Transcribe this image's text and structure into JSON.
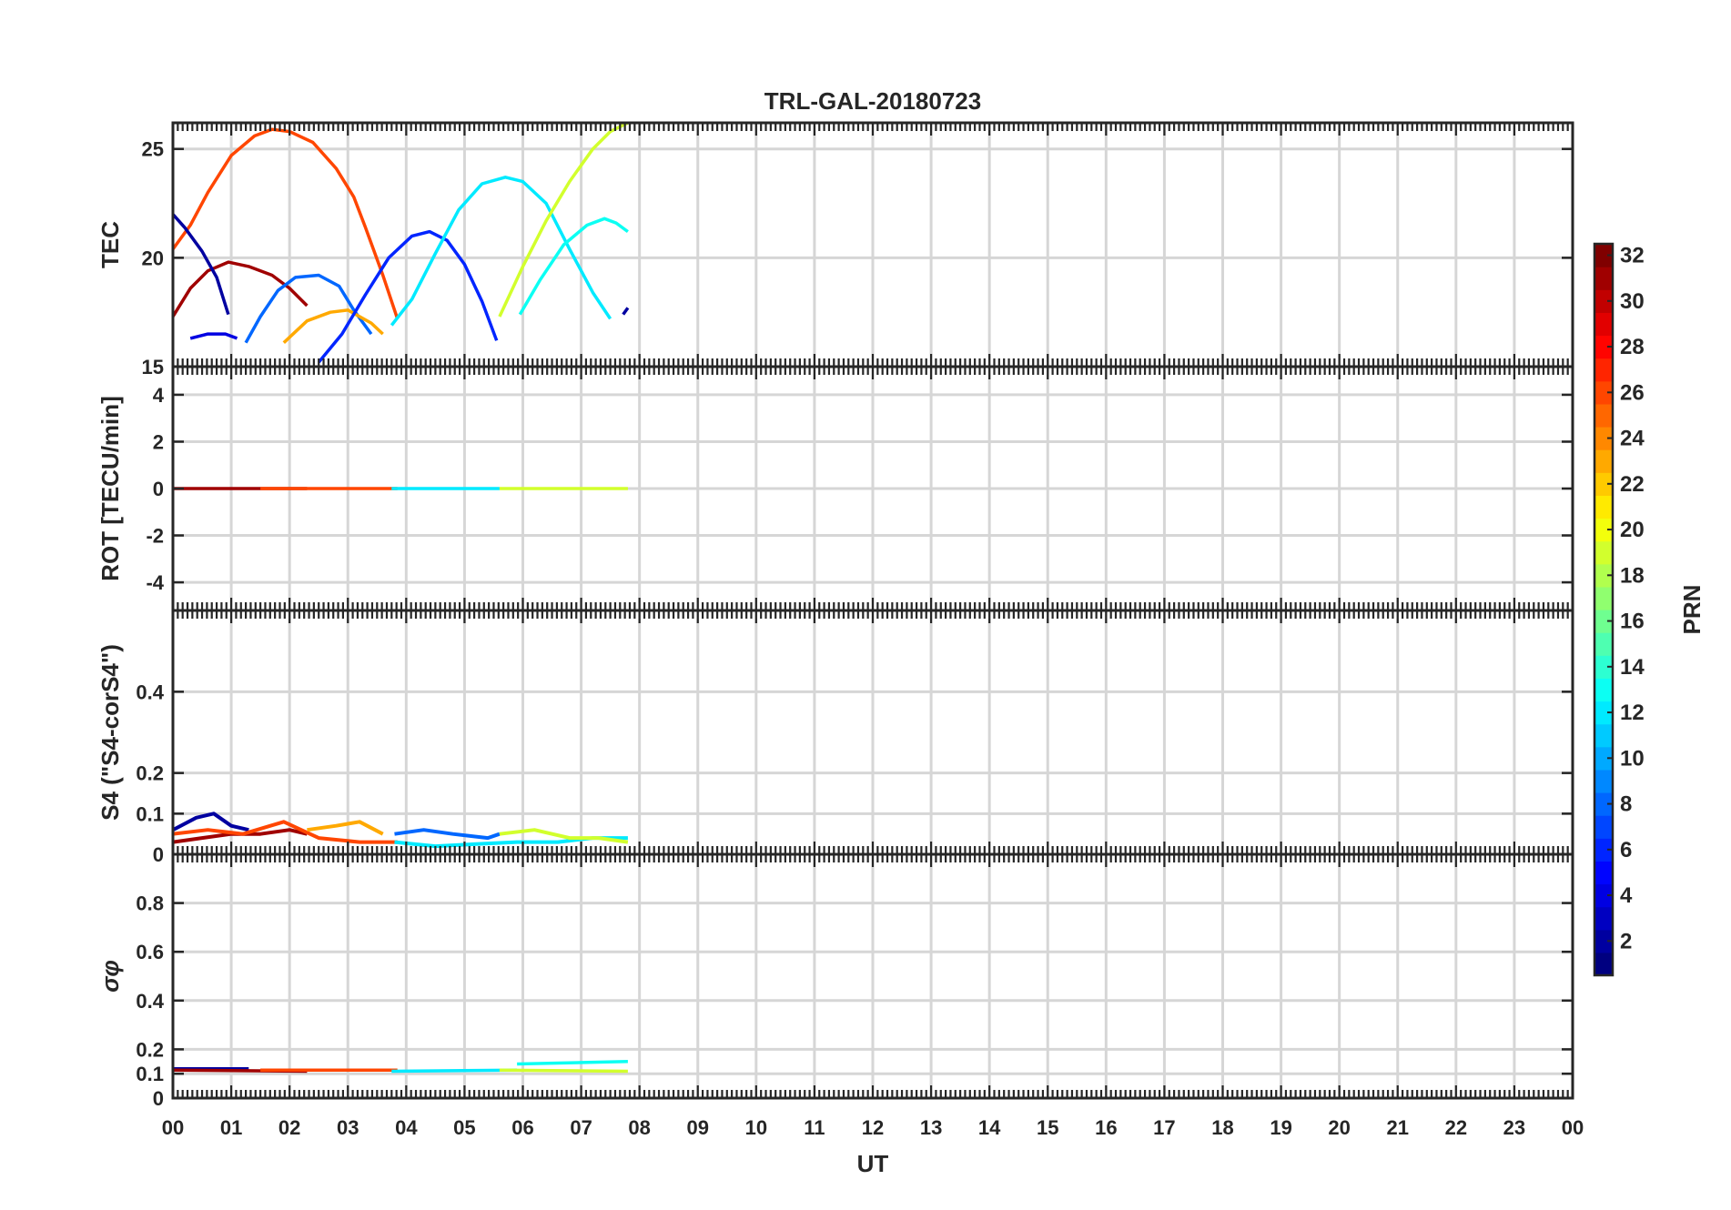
{
  "chart_data": {
    "type": "line",
    "title": "TRL-GAL-20180723",
    "xlabel": "UT",
    "x_tick_labels": [
      "00",
      "01",
      "02",
      "03",
      "04",
      "05",
      "06",
      "07",
      "08",
      "09",
      "10",
      "11",
      "12",
      "13",
      "14",
      "15",
      "16",
      "17",
      "18",
      "19",
      "20",
      "21",
      "22",
      "23",
      "00"
    ],
    "xlim": [
      0,
      24
    ],
    "grid": true,
    "colorbar": {
      "label": "PRN",
      "colormap": "jet",
      "range": [
        1,
        32
      ],
      "ticks": [
        "2",
        "4",
        "6",
        "8",
        "10",
        "12",
        "14",
        "16",
        "18",
        "20",
        "22",
        "24",
        "26",
        "28",
        "30",
        "32"
      ],
      "placement": "right"
    },
    "panels": [
      {
        "ylabel": "TEC",
        "ylim": [
          15,
          26.2
        ],
        "yticks": [
          "15",
          "20",
          "25"
        ],
        "series": [
          {
            "prn": 26,
            "points": [
              [
                0,
                20.4
              ],
              [
                0.3,
                21.5
              ],
              [
                0.6,
                23
              ],
              [
                1,
                24.7
              ],
              [
                1.4,
                25.6
              ],
              [
                1.7,
                25.9
              ],
              [
                2,
                25.8
              ],
              [
                2.4,
                25.3
              ],
              [
                2.8,
                24.1
              ],
              [
                3.1,
                22.8
              ],
              [
                3.3,
                21.4
              ],
              [
                3.6,
                19.2
              ],
              [
                3.85,
                17.2
              ]
            ]
          },
          {
            "prn": 31,
            "points": [
              [
                0,
                17.3
              ],
              [
                0.3,
                18.6
              ],
              [
                0.6,
                19.4
              ],
              [
                0.95,
                19.8
              ],
              [
                1.3,
                19.6
              ],
              [
                1.7,
                19.2
              ],
              [
                2,
                18.6
              ],
              [
                2.3,
                17.8
              ]
            ]
          },
          {
            "prn": 2,
            "points": [
              [
                0,
                22
              ],
              [
                0.2,
                21.4
              ],
              [
                0.5,
                20.3
              ],
              [
                0.75,
                19.1
              ],
              [
                0.95,
                17.4
              ]
            ]
          },
          {
            "prn": 4,
            "points": [
              [
                0.3,
                16.3
              ],
              [
                0.6,
                16.5
              ],
              [
                0.9,
                16.5
              ],
              [
                1.1,
                16.3
              ]
            ]
          },
          {
            "prn": 8,
            "points": [
              [
                1.25,
                16.1
              ],
              [
                1.5,
                17.3
              ],
              [
                1.8,
                18.5
              ],
              [
                2.1,
                19.1
              ],
              [
                2.5,
                19.2
              ],
              [
                2.85,
                18.7
              ],
              [
                3.1,
                17.6
              ],
              [
                3.4,
                16.5
              ]
            ]
          },
          {
            "prn": 23,
            "points": [
              [
                1.9,
                16.1
              ],
              [
                2.3,
                17.1
              ],
              [
                2.7,
                17.5
              ],
              [
                3,
                17.6
              ],
              [
                3.4,
                17
              ],
              [
                3.6,
                16.5
              ]
            ]
          },
          {
            "prn": 6,
            "points": [
              [
                2.5,
                15.2
              ],
              [
                2.9,
                16.5
              ],
              [
                3.3,
                18.3
              ],
              [
                3.7,
                20
              ],
              [
                4.1,
                21
              ],
              [
                4.4,
                21.2
              ],
              [
                4.7,
                20.8
              ],
              [
                5,
                19.7
              ],
              [
                5.3,
                18
              ],
              [
                5.55,
                16.2
              ]
            ]
          },
          {
            "prn": 12,
            "points": [
              [
                3.75,
                16.9
              ],
              [
                4.1,
                18.1
              ],
              [
                4.5,
                20.2
              ],
              [
                4.9,
                22.2
              ],
              [
                5.3,
                23.4
              ],
              [
                5.7,
                23.7
              ],
              [
                6,
                23.5
              ],
              [
                6.4,
                22.5
              ],
              [
                6.8,
                20.4
              ],
              [
                7.2,
                18.4
              ],
              [
                7.5,
                17.2
              ]
            ]
          },
          {
            "prn": 19,
            "points": [
              [
                5.6,
                17.3
              ],
              [
                6,
                19.6
              ],
              [
                6.4,
                21.7
              ],
              [
                6.8,
                23.5
              ],
              [
                7.2,
                25
              ],
              [
                7.5,
                25.8
              ],
              [
                7.8,
                26.2
              ]
            ]
          },
          {
            "prn": 13,
            "points": [
              [
                5.95,
                17.4
              ],
              [
                6.3,
                19
              ],
              [
                6.7,
                20.6
              ],
              [
                7.1,
                21.5
              ],
              [
                7.4,
                21.8
              ],
              [
                7.6,
                21.6
              ],
              [
                7.8,
                21.2
              ]
            ]
          },
          {
            "prn": 2,
            "points": [
              [
                7.72,
                17.4
              ],
              [
                7.8,
                17.7
              ]
            ]
          }
        ]
      },
      {
        "ylabel": "ROT [TECU/min]",
        "ylim": [
          -5.2,
          5.2
        ],
        "yticks": [
          "-4",
          "-2",
          "0",
          "2",
          "4"
        ],
        "series": [
          {
            "prn": 31,
            "points": [
              [
                0,
                0
              ],
              [
                2.3,
                0
              ]
            ]
          },
          {
            "prn": 26,
            "points": [
              [
                1.5,
                0
              ],
              [
                3.85,
                0
              ]
            ]
          },
          {
            "prn": 12,
            "points": [
              [
                3.75,
                0
              ],
              [
                5.6,
                0
              ]
            ]
          },
          {
            "prn": 19,
            "points": [
              [
                5.6,
                0
              ],
              [
                7.8,
                0
              ]
            ]
          }
        ]
      },
      {
        "ylabel": "S4 (\"S4-corS4\")",
        "ylim": [
          0,
          0.6
        ],
        "yticks": [
          "0",
          "0.1",
          "0.2",
          "0.4"
        ],
        "series": [
          {
            "prn": 2,
            "points": [
              [
                0,
                0.06
              ],
              [
                0.4,
                0.09
              ],
              [
                0.7,
                0.1
              ],
              [
                1,
                0.07
              ],
              [
                1.3,
                0.06
              ]
            ]
          },
          {
            "prn": 31,
            "points": [
              [
                0,
                0.03
              ],
              [
                0.5,
                0.04
              ],
              [
                1,
                0.05
              ],
              [
                1.5,
                0.05
              ],
              [
                2,
                0.06
              ],
              [
                2.3,
                0.05
              ]
            ]
          },
          {
            "prn": 26,
            "points": [
              [
                0,
                0.05
              ],
              [
                0.6,
                0.06
              ],
              [
                1.2,
                0.05
              ],
              [
                1.9,
                0.08
              ],
              [
                2.5,
                0.04
              ],
              [
                3.2,
                0.03
              ],
              [
                3.85,
                0.03
              ]
            ]
          },
          {
            "prn": 23,
            "points": [
              [
                2.3,
                0.06
              ],
              [
                2.8,
                0.07
              ],
              [
                3.2,
                0.08
              ],
              [
                3.6,
                0.05
              ]
            ]
          },
          {
            "prn": 8,
            "points": [
              [
                3.8,
                0.05
              ],
              [
                4.3,
                0.06
              ],
              [
                4.8,
                0.05
              ],
              [
                5.4,
                0.04
              ],
              [
                5.6,
                0.05
              ]
            ]
          },
          {
            "prn": 12,
            "points": [
              [
                3.8,
                0.03
              ],
              [
                4.5,
                0.02
              ],
              [
                5.2,
                0.025
              ],
              [
                5.9,
                0.03
              ],
              [
                6.6,
                0.03
              ],
              [
                7.2,
                0.04
              ],
              [
                7.8,
                0.04
              ]
            ]
          },
          {
            "prn": 19,
            "points": [
              [
                5.6,
                0.05
              ],
              [
                6.2,
                0.06
              ],
              [
                6.8,
                0.04
              ],
              [
                7.3,
                0.04
              ],
              [
                7.8,
                0.03
              ]
            ]
          }
        ]
      },
      {
        "ylabel": "σφ",
        "ylim": [
          0,
          1
        ],
        "yticks": [
          "0",
          "0.1",
          "0.2",
          "0.4",
          "0.6",
          "0.8"
        ],
        "series": [
          {
            "prn": 2,
            "points": [
              [
                0,
                0.12
              ],
              [
                1.3,
                0.12
              ]
            ]
          },
          {
            "prn": 31,
            "points": [
              [
                0,
                0.115
              ],
              [
                2.3,
                0.11
              ]
            ]
          },
          {
            "prn": 26,
            "points": [
              [
                1.5,
                0.115
              ],
              [
                3.85,
                0.115
              ]
            ]
          },
          {
            "prn": 12,
            "points": [
              [
                3.75,
                0.11
              ],
              [
                5.9,
                0.115
              ]
            ]
          },
          {
            "prn": 13,
            "points": [
              [
                5.9,
                0.14
              ],
              [
                7.8,
                0.15
              ]
            ]
          },
          {
            "prn": 19,
            "points": [
              [
                5.6,
                0.115
              ],
              [
                7.8,
                0.11
              ]
            ]
          }
        ]
      }
    ]
  }
}
